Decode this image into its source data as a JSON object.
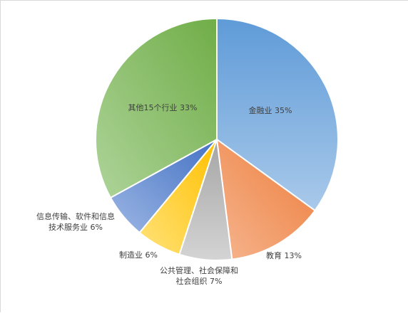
{
  "chart_data": {
    "type": "pie",
    "title": "",
    "slices": [
      {
        "label_lines": [
          "金融业 35%"
        ],
        "value": 35,
        "color_light": "#a9c9ea",
        "color_dark": "#5f9bd8"
      },
      {
        "label_lines": [
          "教育 13%"
        ],
        "value": 13,
        "color_light": "#f6b58f",
        "color_dark": "#ed7d3b"
      },
      {
        "label_lines": [
          "公共管理、社会保障和",
          "社会组织 7%"
        ],
        "value": 7,
        "color_light": "#d4d4d4",
        "color_dark": "#a5a5a5"
      },
      {
        "label_lines": [
          "制造业 6%"
        ],
        "value": 6,
        "color_light": "#ffe27a",
        "color_dark": "#ffc000"
      },
      {
        "label_lines": [
          "信息传输、软件和信息",
          "技术服务业 6%"
        ],
        "value": 6,
        "color_light": "#9cb6e4",
        "color_dark": "#4472c4"
      },
      {
        "label_lines": [
          "其他15个行业 33%"
        ],
        "value": 33,
        "color_light": "#aed49a",
        "color_dark": "#70ad47"
      }
    ]
  }
}
